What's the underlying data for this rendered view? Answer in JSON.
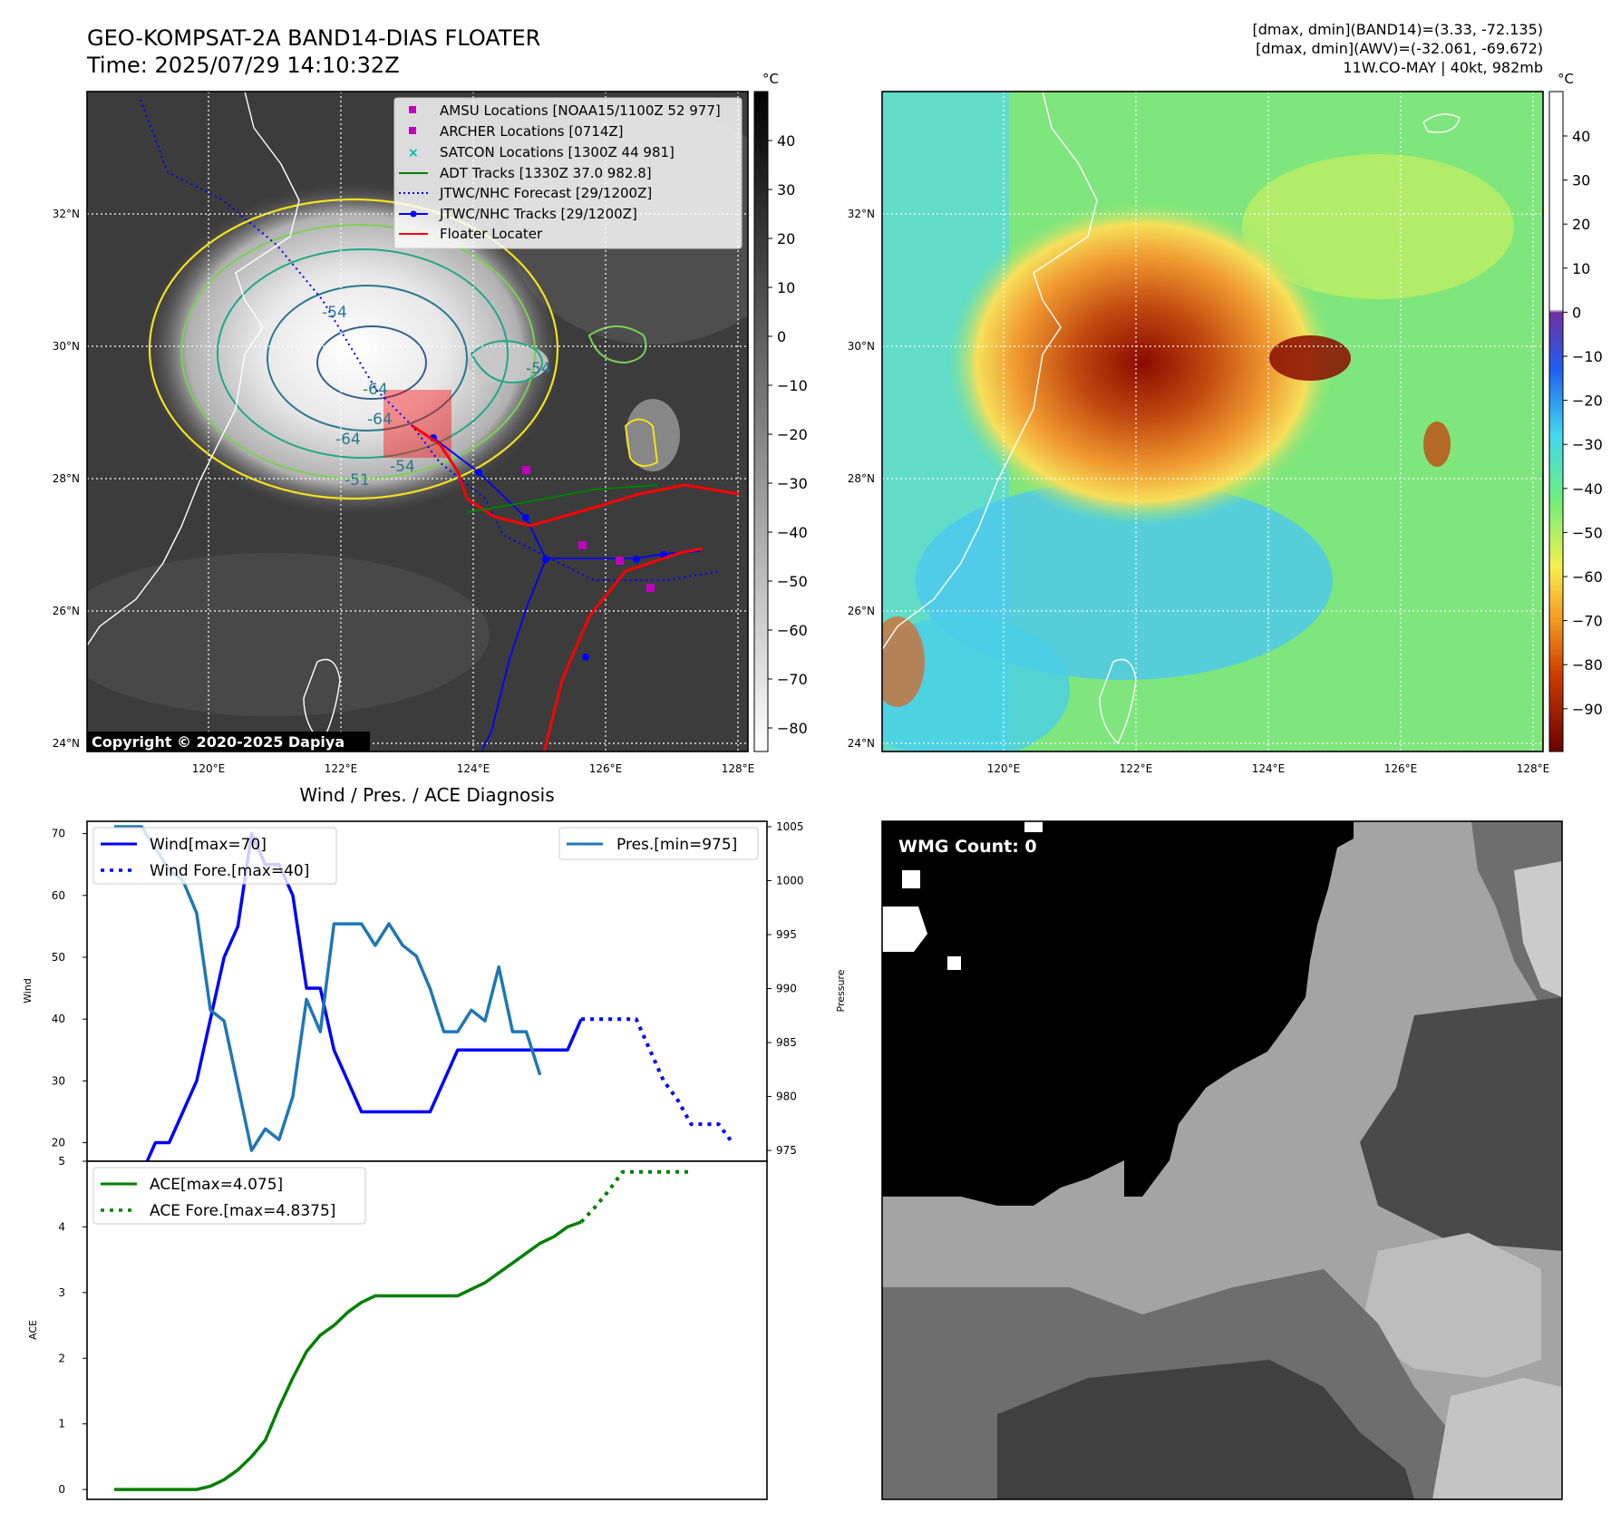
{
  "header": {
    "title_line1": "GEO-KOMPSAT-2A BAND14-DIAS FLOATER",
    "title_line2": "Time: 2025/07/29 14:10:32Z",
    "info_line1": "[dmax, dmin](BAND14)=(3.33, -72.135)",
    "info_line2": "[dmax, dmin](AWV)=(-32.061, -69.672)",
    "info_line3": "11W.CO-MAY | 40kt, 982mb"
  },
  "map": {
    "lat_labels": [
      "32°N",
      "30°N",
      "28°N",
      "26°N",
      "24°N"
    ],
    "lon_labels": [
      "120°E",
      "122°E",
      "124°E",
      "126°E",
      "128°E"
    ],
    "copyright": "Copyright © 2020-2025 Dapiya",
    "contour_labels": [
      "-64",
      "-64",
      "-64",
      "-54",
      "-54",
      "-54",
      "-51"
    ],
    "legend": [
      {
        "label": "AMSU Locations [NOAA15/1100Z 52 977]",
        "color": "#c000c0",
        "marker": "square"
      },
      {
        "label": "ARCHER Locations [0714Z]",
        "color": "#c000c0",
        "marker": "square"
      },
      {
        "label": "SATCON Locations [1300Z 44 981]",
        "color": "#00b8b8",
        "marker": "x"
      },
      {
        "label": "ADT Tracks [1330Z 37.0 982.8]",
        "color": "#008000",
        "marker": "line"
      },
      {
        "label": "JTWC/NHC Forecast [29/1200Z]",
        "color": "#0000ff",
        "marker": "dotted"
      },
      {
        "label": "JTWC/NHC Tracks [29/1200Z]",
        "color": "#0000ff",
        "marker": "line-dot"
      },
      {
        "label": "Floater Locater",
        "color": "#ff0000",
        "marker": "line"
      }
    ]
  },
  "colorbar_ir": {
    "unit": "°C",
    "ticks": [
      "40",
      "30",
      "20",
      "10",
      "0",
      "−10",
      "−20",
      "−30",
      "−40",
      "−50",
      "−60",
      "−70",
      "−80"
    ]
  },
  "colorbar_wv": {
    "unit": "°C",
    "ticks": [
      "40",
      "30",
      "20",
      "10",
      "0",
      "−10",
      "−20",
      "−30",
      "−40",
      "−50",
      "−60",
      "−70",
      "−80",
      "−90"
    ]
  },
  "diag": {
    "title": "Wind / Pres. / ACE Diagnosis",
    "wind_ylabel": "Wind",
    "pres_ylabel": "Pressure",
    "ace_ylabel": "ACE",
    "wind_ticks": [
      "70",
      "60",
      "50",
      "40",
      "30",
      "20"
    ],
    "pres_ticks": [
      "1005",
      "1000",
      "995",
      "990",
      "985",
      "980",
      "975"
    ],
    "ace_ticks": [
      "5",
      "4",
      "3",
      "2",
      "1",
      "0"
    ],
    "legend_wind": "Wind[max=70]",
    "legend_wind_fore": "Wind Fore.[max=40]",
    "legend_pres": "Pres.[min=975]",
    "legend_ace": "ACE[max=4.075]",
    "legend_ace_fore": "ACE Fore.[max=4.8375]"
  },
  "wmg": {
    "label": "WMG Count: 0"
  },
  "chart_data": [
    {
      "type": "line",
      "title": "Wind / Pres. / ACE Diagnosis",
      "ylabel": "Wind",
      "ylim": [
        17,
        72
      ],
      "series": [
        {
          "name": "Wind[max=70]",
          "color": "#0000ff",
          "style": "solid",
          "values": [
            15,
            15,
            15,
            20,
            20,
            25,
            30,
            40,
            50,
            55,
            70,
            65,
            65,
            60,
            45,
            45,
            35,
            30,
            25,
            25,
            25,
            25,
            25,
            25,
            30,
            35,
            35,
            35,
            35,
            35,
            35,
            35,
            35,
            35,
            40
          ]
        },
        {
          "name": "Wind Fore.[max=40]",
          "color": "#0000ff",
          "style": "dotted",
          "values": [
            40,
            40,
            40,
            40,
            40,
            35,
            30,
            27,
            23,
            23,
            23,
            20
          ]
        }
      ]
    },
    {
      "type": "line",
      "ylabel": "Pressure",
      "ylim": [
        974,
        1005.5
      ],
      "series": [
        {
          "name": "Pres.[min=975]",
          "color": "#1f77b4",
          "style": "solid",
          "values": [
            1005,
            1005,
            1005,
            1003,
            1001,
            1000,
            997,
            988,
            987,
            981,
            975,
            977,
            976,
            980,
            989,
            986,
            996,
            996,
            996,
            994,
            996,
            994,
            993,
            990,
            986,
            986,
            988,
            987,
            992,
            986,
            986,
            982
          ]
        }
      ]
    },
    {
      "type": "line",
      "ylabel": "ACE",
      "ylim": [
        -0.15,
        5
      ],
      "series": [
        {
          "name": "ACE[max=4.075]",
          "color": "#008000",
          "style": "solid",
          "values": [
            0,
            0,
            0,
            0,
            0,
            0,
            0,
            0.05,
            0.15,
            0.3,
            0.5,
            0.75,
            1.25,
            1.7,
            2.1,
            2.35,
            2.5,
            2.7,
            2.85,
            2.95,
            2.95,
            2.95,
            2.95,
            2.95,
            2.95,
            2.95,
            3.05,
            3.15,
            3.3,
            3.45,
            3.6,
            3.75,
            3.85,
            4.0,
            4.075
          ]
        },
        {
          "name": "ACE Fore.[max=4.8375]",
          "color": "#008000",
          "style": "dotted",
          "values": [
            4.075,
            4.3,
            4.55,
            4.8375,
            4.8375,
            4.8375,
            4.8375,
            4.8375,
            4.8375
          ]
        }
      ]
    }
  ]
}
